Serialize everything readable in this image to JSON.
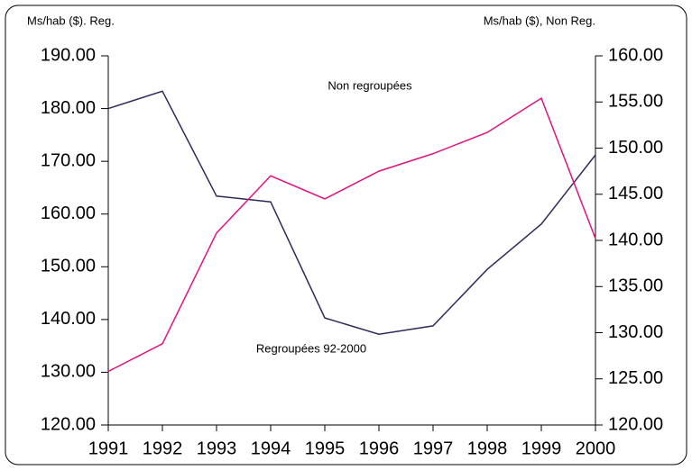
{
  "chart_data": {
    "type": "line",
    "y_label": "Ms/hab ($). Reg.",
    "y2_label": "Ms/hab ($), Non Reg.",
    "categories": [
      "1991",
      "1992",
      "1993",
      "1994",
      "1995",
      "1996",
      "1997",
      "1998",
      "1999",
      "2000"
    ],
    "series": [
      {
        "name": "Regroupées 92-2000",
        "color": "#2e2a5c",
        "values": [
          180,
          183.3,
          163.4,
          162.3,
          140.3,
          137.2,
          138.8,
          149.5,
          158.1,
          171.2
        ]
      },
      {
        "name": "Non regroupées",
        "color": "#e0137f",
        "axis": "y2",
        "values": [
          125.8,
          128.8,
          140.8,
          147.0,
          144.5,
          147.5,
          149.4,
          151.7,
          155.4,
          140.2
        ]
      }
    ],
    "ylim": [
      120,
      190
    ],
    "yticks": [
      {
        "value": 120,
        "label": "120.00"
      },
      {
        "value": 130,
        "label": "130.00"
      },
      {
        "value": 140,
        "label": "140.00"
      },
      {
        "value": 150,
        "label": "150.00"
      },
      {
        "value": 160,
        "label": "160.00"
      },
      {
        "value": 170,
        "label": "170.00"
      },
      {
        "value": 180,
        "label": "180.00"
      },
      {
        "value": 190,
        "label": "190.00"
      }
    ],
    "y2lim": [
      120,
      160
    ],
    "y2ticks": [
      {
        "value": 120,
        "label": "120.00"
      },
      {
        "value": 125,
        "label": "125.00"
      },
      {
        "value": 130,
        "label": "130.00"
      },
      {
        "value": 135,
        "label": "135.00"
      },
      {
        "value": 140,
        "label": "140.00"
      },
      {
        "value": 145,
        "label": "145.00"
      },
      {
        "value": 150,
        "label": "150.00"
      },
      {
        "value": 155,
        "label": "155.00"
      },
      {
        "value": 160,
        "label": "160.00"
      }
    ],
    "grid": false
  }
}
